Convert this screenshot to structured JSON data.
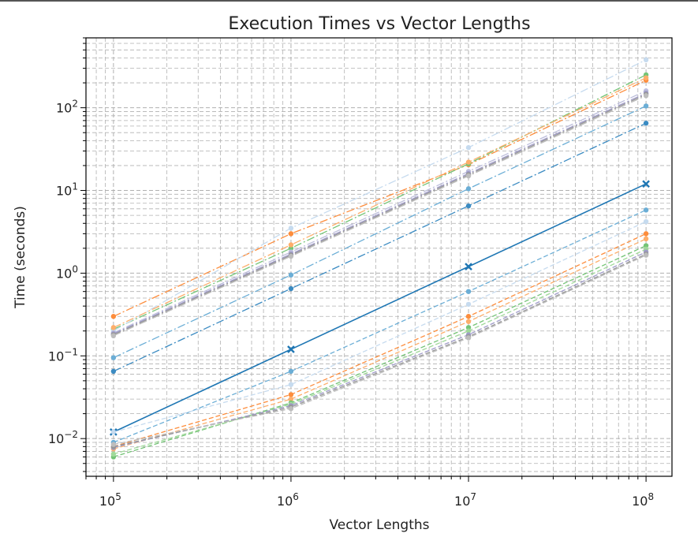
{
  "chart_data": {
    "type": "line",
    "title": "Execution Times vs Vector Lengths",
    "xlabel": "Vector Lengths",
    "ylabel": "Time (seconds)",
    "xscale": "log",
    "yscale": "log",
    "xlim": [
      70000,
      140000000
    ],
    "ylim": [
      0.0035,
      700
    ],
    "x": [
      100000,
      1000000,
      10000000,
      100000000
    ],
    "x_tick_labels": [
      {
        "base": "10",
        "exp": "5"
      },
      {
        "base": "10",
        "exp": "6"
      },
      {
        "base": "10",
        "exp": "7"
      },
      {
        "base": "10",
        "exp": "8"
      }
    ],
    "y_tick_labels": [
      {
        "base": "10",
        "exp": "−2"
      },
      {
        "base": "10",
        "exp": "−1"
      },
      {
        "base": "10",
        "exp": "0"
      },
      {
        "base": "10",
        "exp": "1"
      },
      {
        "base": "10",
        "exp": "2"
      }
    ],
    "grid": true,
    "legend": "none",
    "series": [
      {
        "values": [
          0.012,
          0.12,
          1.2,
          12
        ],
        "color": "#1f77b4",
        "dash": "solid",
        "marker": "x"
      },
      {
        "values": [
          0.065,
          0.65,
          6.5,
          65
        ],
        "color": "#3b8bc2",
        "dash": "dashdot",
        "marker": "o"
      },
      {
        "values": [
          0.095,
          0.95,
          10.5,
          105
        ],
        "color": "#6baed6",
        "dash": "dashdot",
        "marker": "o"
      },
      {
        "values": [
          0.3,
          3.0,
          20.5,
          215
        ],
        "color": "#fd8d3c",
        "dash": "dashdot",
        "marker": "o"
      },
      {
        "values": [
          0.21,
          2.0,
          21,
          250
        ],
        "color": "#74c476",
        "dash": "dashdot",
        "marker": "o"
      },
      {
        "values": [
          0.2,
          3.5,
          33,
          380
        ],
        "color": "#c6dbef",
        "dash": "dashdot",
        "marker": "o"
      },
      {
        "values": [
          0.22,
          2.2,
          22,
          230
        ],
        "color": "#fdae6b",
        "dash": "dashdot",
        "marker": "o"
      },
      {
        "values": [
          0.19,
          1.8,
          17,
          160
        ],
        "color": "#bcbddc",
        "dash": "dashdot",
        "marker": "o"
      },
      {
        "values": [
          0.185,
          1.7,
          16,
          150
        ],
        "color": "#9e9ac8",
        "dash": "dashdot",
        "marker": "o"
      },
      {
        "values": [
          0.18,
          1.65,
          15.5,
          145
        ],
        "color": "#969696",
        "dash": "dashdot",
        "marker": "o"
      },
      {
        "values": [
          0.175,
          1.6,
          15,
          140
        ],
        "color": "#bdbdbd",
        "dash": "dashdot",
        "marker": "o"
      },
      {
        "values": [
          0.009,
          0.065,
          0.6,
          5.8
        ],
        "color": "#6baed6",
        "dash": "dashed",
        "marker": "o"
      },
      {
        "values": [
          0.012,
          0.045,
          0.42,
          4.2
        ],
        "color": "#c6dbef",
        "dash": "dashed",
        "marker": "o"
      },
      {
        "values": [
          0.008,
          0.034,
          0.3,
          3.0
        ],
        "color": "#fd8d3c",
        "dash": "dashed",
        "marker": "o"
      },
      {
        "values": [
          0.0075,
          0.03,
          0.26,
          2.6
        ],
        "color": "#fdae6b",
        "dash": "dashed",
        "marker": "o"
      },
      {
        "values": [
          0.006,
          0.027,
          0.22,
          2.15
        ],
        "color": "#74c476",
        "dash": "dashed",
        "marker": "o"
      },
      {
        "values": [
          0.0065,
          0.026,
          0.2,
          1.95
        ],
        "color": "#a1d99b",
        "dash": "dashed",
        "marker": "o"
      },
      {
        "values": [
          0.0078,
          0.025,
          0.18,
          1.8
        ],
        "color": "#9e9ac8",
        "dash": "dashed",
        "marker": "o"
      },
      {
        "values": [
          0.008,
          0.024,
          0.17,
          1.7
        ],
        "color": "#969696",
        "dash": "dashed",
        "marker": "o"
      },
      {
        "values": [
          0.0085,
          0.023,
          0.165,
          1.65
        ],
        "color": "#bdbdbd",
        "dash": "dashed",
        "marker": "o"
      }
    ]
  }
}
